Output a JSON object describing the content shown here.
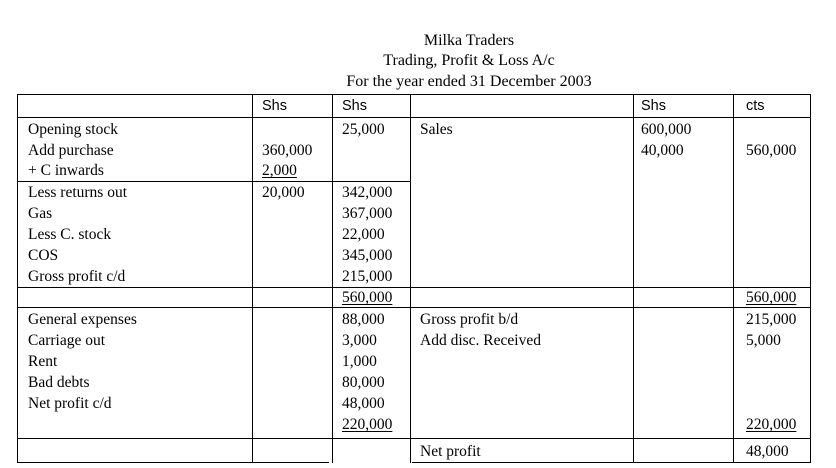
{
  "header": {
    "company": "Milka Traders",
    "statement": "Trading, Profit & Loss A/c",
    "period": "For the year ended 31 December 2003"
  },
  "columns": {
    "debit_shs_1": "Shs",
    "debit_shs_2": "Shs",
    "credit_shs": "Shs",
    "credit_cts": "cts"
  },
  "trading_debit": {
    "labels": [
      "Opening stock",
      "Add purchase",
      "+ C inwards",
      "Less returns out",
      "Gas",
      "Less C. stock",
      "COS",
      "Gross profit c/d"
    ],
    "col1": [
      "360,000",
      "2,000",
      "20,000"
    ],
    "col2": [
      "25,000",
      "342,000",
      "367,000",
      "22,000",
      "345,000",
      "215,000"
    ],
    "total": "560,000"
  },
  "trading_credit": {
    "label": "Sales",
    "col1": [
      "600,000",
      "40,000"
    ],
    "col2": "560,000",
    "total": "560,000"
  },
  "pl_debit": {
    "labels": [
      "General expenses",
      "Carriage out",
      "Rent",
      "Bad debts",
      "Net profit c/d"
    ],
    "values": [
      "88,000",
      "3,000",
      "1,000",
      "80,000",
      "48,000"
    ],
    "total": "220,000"
  },
  "pl_credit": {
    "labels": [
      "Gross profit b/d",
      "Add disc. Received"
    ],
    "values": [
      "215,000",
      "5,000"
    ],
    "total": "220,000"
  },
  "footer": {
    "label": "Net profit",
    "value": "48,000"
  }
}
